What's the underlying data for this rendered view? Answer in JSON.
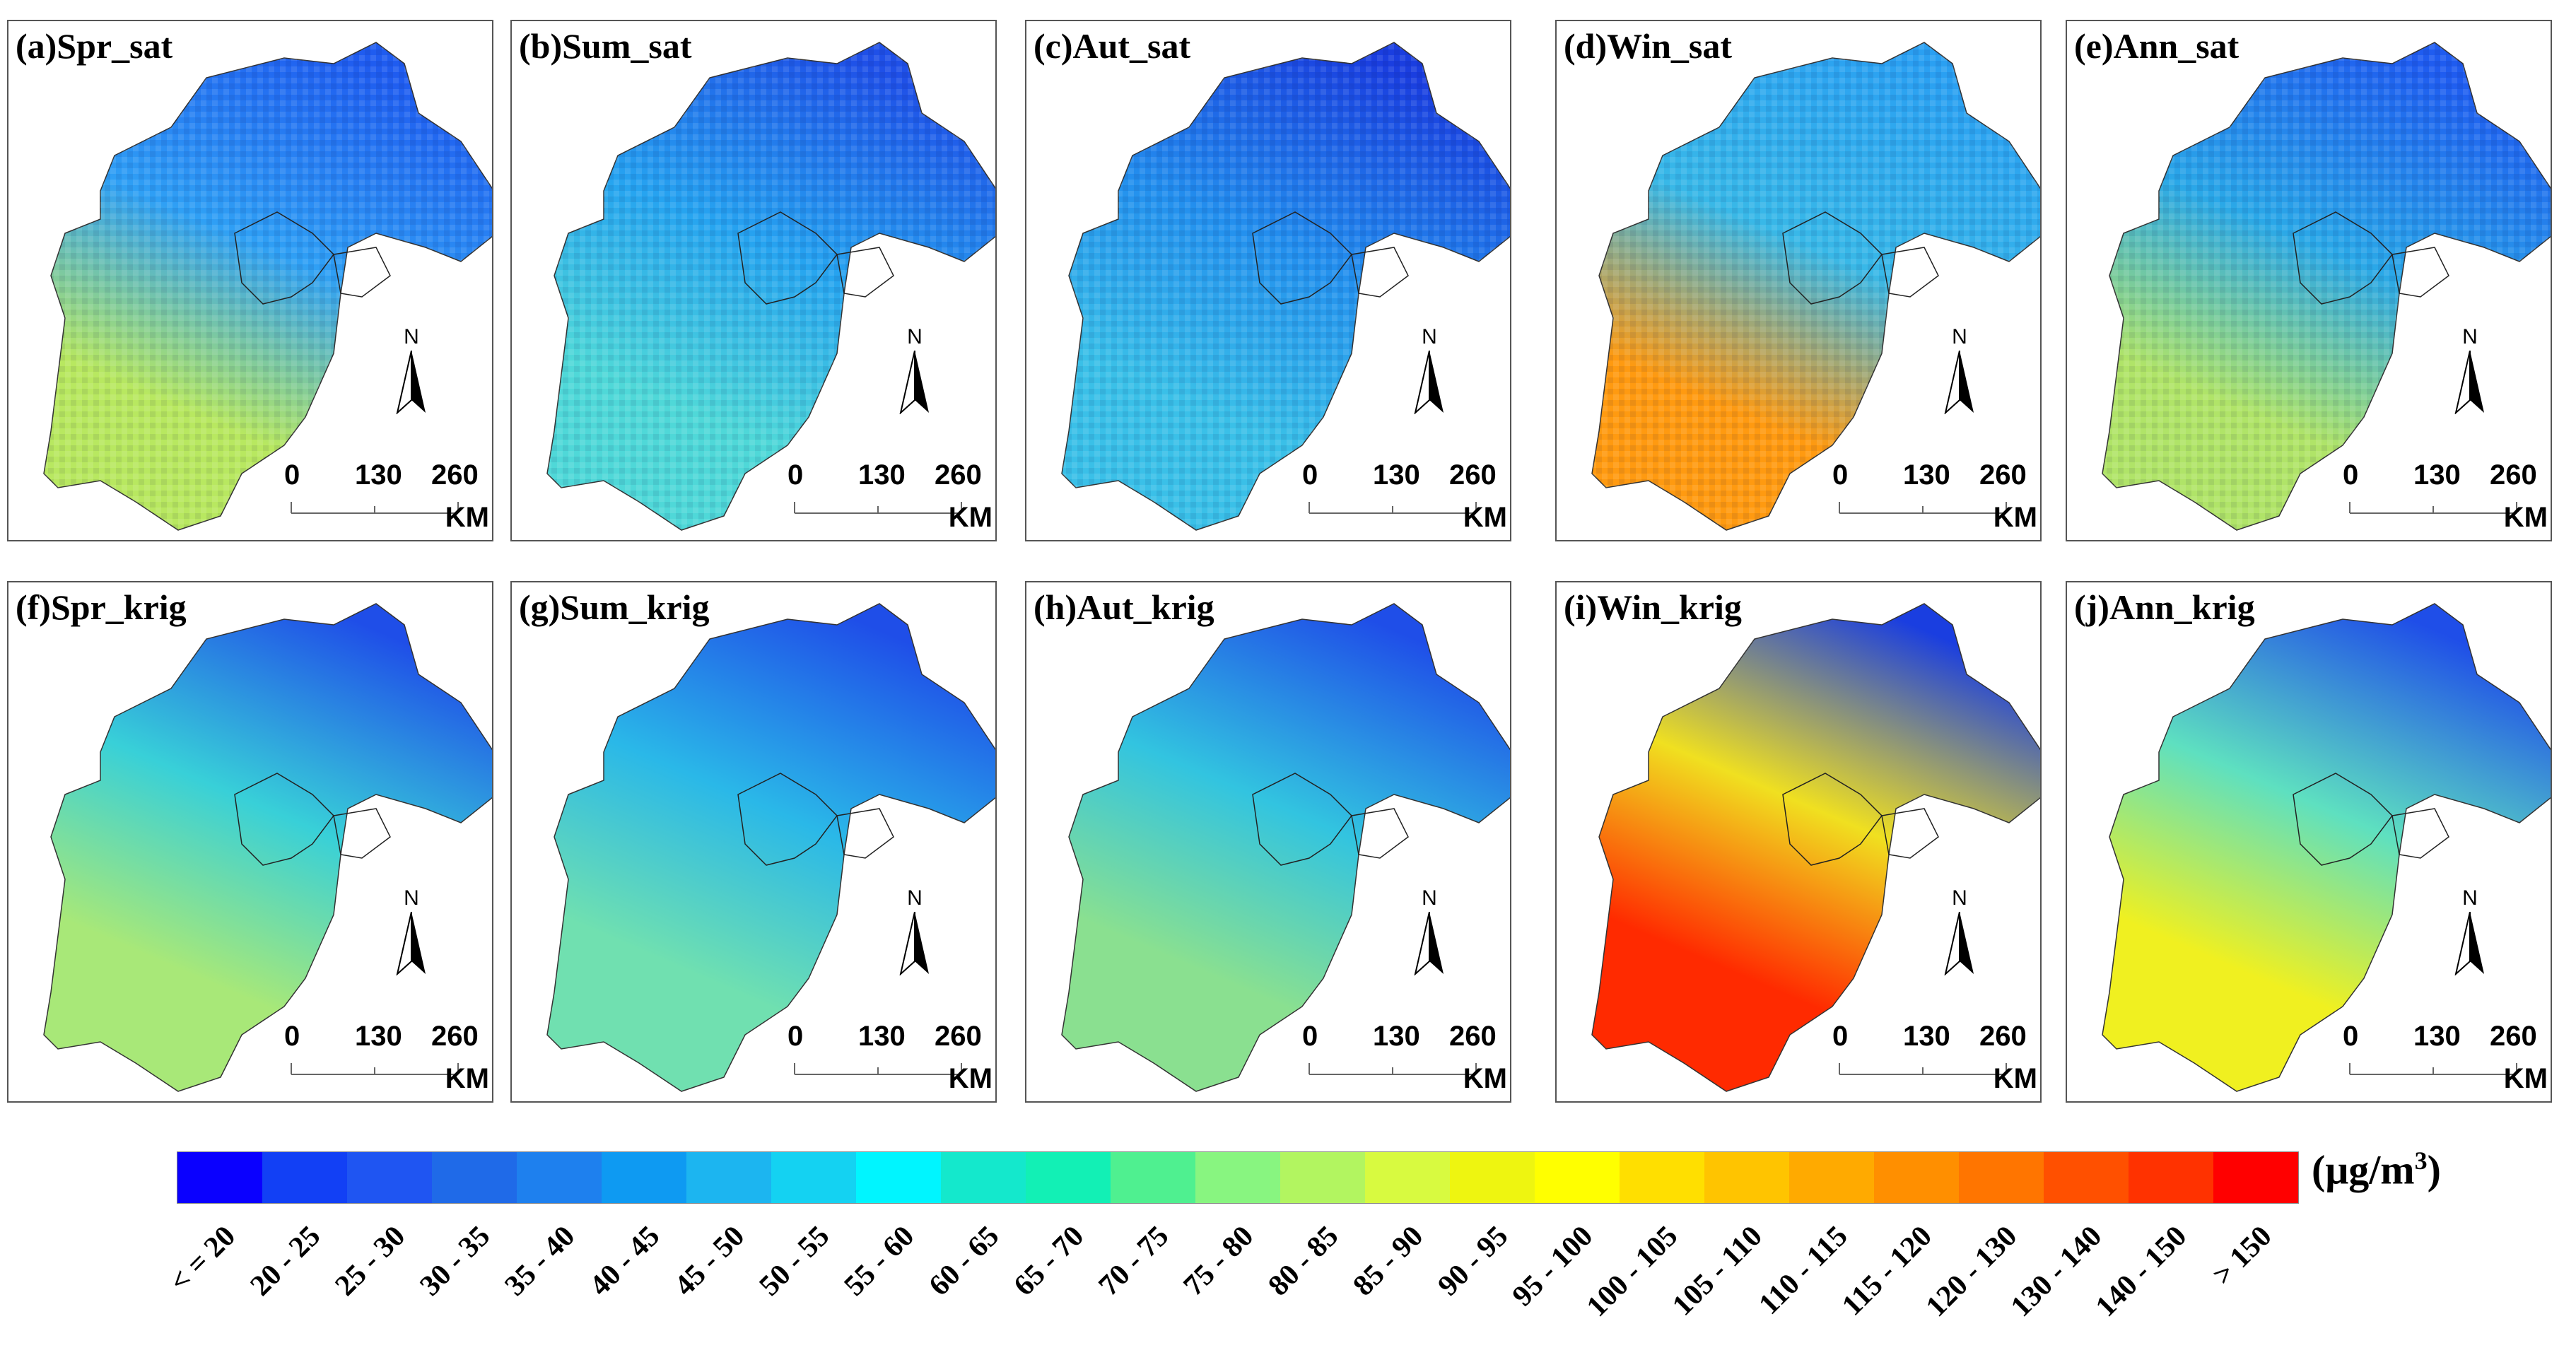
{
  "panels": [
    {
      "label": "(a)Spr_sat",
      "style": "sat",
      "colors": {
        "north": "#1f5cf0",
        "mid": "#2fa0f5",
        "south": "#b8e860"
      }
    },
    {
      "label": "(b)Sum_sat",
      "style": "sat",
      "colors": {
        "north": "#1f50e8",
        "mid": "#26a4f0",
        "south": "#4fd8d8"
      }
    },
    {
      "label": "(c)Aut_sat",
      "style": "sat",
      "colors": {
        "north": "#1a3ee0",
        "mid": "#2390ee",
        "south": "#3ac0e8"
      }
    },
    {
      "label": "(d)Win_sat",
      "style": "sat",
      "colors": {
        "north": "#2aa0f2",
        "mid": "#38b8e8",
        "south": "#ff9a10"
      }
    },
    {
      "label": "(e)Ann_sat",
      "style": "sat",
      "colors": {
        "north": "#1f5cf0",
        "mid": "#2aa8e8",
        "south": "#b0e468"
      }
    },
    {
      "label": "(f)Spr_krig",
      "style": "krig",
      "colors": {
        "north": "#1f4ee8",
        "mid": "#38d0d8",
        "south": "#a8e878"
      }
    },
    {
      "label": "(g)Sum_krig",
      "style": "krig",
      "colors": {
        "north": "#1f4ee8",
        "mid": "#2ab8e8",
        "south": "#70e0b0"
      }
    },
    {
      "label": "(h)Aut_krig",
      "style": "krig",
      "colors": {
        "north": "#1f4ee8",
        "mid": "#32c4e0",
        "south": "#8ae090"
      }
    },
    {
      "label": "(i)Win_krig",
      "style": "krig",
      "colors": {
        "north": "#1a3ee0",
        "mid": "#f0e020",
        "south": "#ff2a00"
      }
    },
    {
      "label": "(j)Ann_krig",
      "style": "krig",
      "colors": {
        "north": "#1f4ee8",
        "mid": "#5ee0c0",
        "south": "#f0f020"
      }
    }
  ],
  "north_arrow_label": "N",
  "scale_bar": {
    "ticks": [
      "0",
      "130",
      "260"
    ],
    "unit": "KM"
  },
  "legend": {
    "unit_text": "(μg/m",
    "unit_sup": "3",
    "unit_close": ")",
    "classes": [
      {
        "label": "< = 20",
        "color": "#0a00ff"
      },
      {
        "label": "20 - 25",
        "color": "#1240f5"
      },
      {
        "label": "25 - 30",
        "color": "#1f55f2"
      },
      {
        "label": "30 - 35",
        "color": "#1f6ae8"
      },
      {
        "label": "35 - 40",
        "color": "#1e80ee"
      },
      {
        "label": "40 - 45",
        "color": "#0e9af2"
      },
      {
        "label": "45 - 50",
        "color": "#1cb5f0"
      },
      {
        "label": "50 - 55",
        "color": "#14d2f2"
      },
      {
        "label": "55 - 60",
        "color": "#00f5ff"
      },
      {
        "label": "60 - 65",
        "color": "#14e8cc"
      },
      {
        "label": "65 - 70",
        "color": "#12f0b5"
      },
      {
        "label": "70 - 75",
        "color": "#4ff090"
      },
      {
        "label": "75 - 80",
        "color": "#88f580"
      },
      {
        "label": "80 - 85",
        "color": "#b2f560"
      },
      {
        "label": "85 - 90",
        "color": "#d8fa40"
      },
      {
        "label": "90 - 95",
        "color": "#eef510"
      },
      {
        "label": "95 - 100",
        "color": "#ffff00"
      },
      {
        "label": "100 - 105",
        "color": "#ffdf00"
      },
      {
        "label": "105 - 110",
        "color": "#ffc400"
      },
      {
        "label": "110 - 115",
        "color": "#ffaa00"
      },
      {
        "label": "115 - 120",
        "color": "#ff8f00"
      },
      {
        "label": "120 - 130",
        "color": "#ff7500"
      },
      {
        "label": "130 - 140",
        "color": "#ff5000"
      },
      {
        "label": "140 - 150",
        "color": "#ff3200"
      },
      {
        "label": "> 150",
        "color": "#ff0000"
      }
    ]
  }
}
